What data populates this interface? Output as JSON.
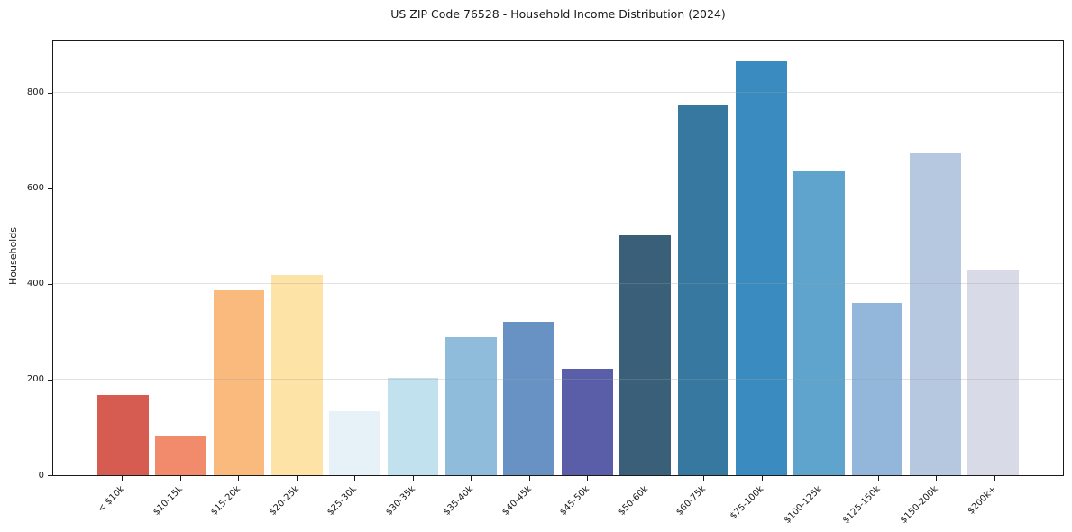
{
  "chart_data": {
    "type": "bar",
    "title": "US ZIP Code 76528 - Household Income Distribution (2024)",
    "xlabel": "",
    "ylabel": "Households",
    "categories": [
      "< $10k",
      "$10-15k",
      "$15-20k",
      "$20-25k",
      "$25-30k",
      "$30-35k",
      "$35-40k",
      "$40-45k",
      "$45-50k",
      "$50-60k",
      "$60-75k",
      "$75-100k",
      "$100-125k",
      "$125-150k",
      "$150-200k",
      "$200k+"
    ],
    "values": [
      168,
      82,
      386,
      419,
      134,
      203,
      289,
      321,
      222,
      501,
      776,
      865,
      636,
      361,
      673,
      430
    ],
    "bar_colors": [
      "#d65c52",
      "#f28a6c",
      "#fbba7d",
      "#fde3a5",
      "#e6f2f8",
      "#c2e1ee",
      "#8fbcdb",
      "#6892c4",
      "#5a5ea9",
      "#3a5f79",
      "#36789f",
      "#398bc0",
      "#5ea4cc",
      "#93b7da",
      "#b6c8e0",
      "#d8dae8"
    ],
    "ylim": [
      0,
      909
    ],
    "yticks": [
      0,
      200,
      400,
      600,
      800
    ],
    "grid": "horizontal",
    "legend": null,
    "background": "#ffffff",
    "axis_color": "#1a1a1a"
  }
}
